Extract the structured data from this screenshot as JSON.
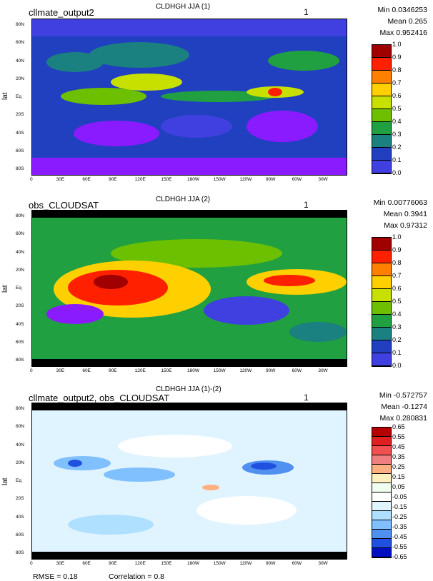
{
  "panels": [
    {
      "title_left": "cllmate_output2",
      "title_center": "CLDHGH JJA (1)",
      "title_right": "1",
      "stats": {
        "min": "Min 0.0346253",
        "mean": "Mean 0.265",
        "max": "Max 0.952416"
      },
      "ylabel": "lat",
      "colorbar": {
        "labels": [
          "1.0",
          "0.9",
          "0.8",
          "0.7",
          "0.6",
          "0.5",
          "0.4",
          "0.3",
          "0.2",
          "0.1",
          "0.0"
        ],
        "colors": [
          "#a00000",
          "#ff2000",
          "#ff8000",
          "#ffd000",
          "#c8e000",
          "#6cc000",
          "#20a040",
          "#1a8080",
          "#2040c0",
          "#4040e0",
          "#8a1aff"
        ]
      }
    },
    {
      "title_left": "obs_CLOUDSAT",
      "title_center": "CLDHGH JJA (2)",
      "title_right": "1",
      "stats": {
        "min": "Min 0.00776063",
        "mean": "Mean 0.3941",
        "max": "Max 0.97312"
      },
      "ylabel": "lat",
      "colorbar": {
        "labels": [
          "1.0",
          "0.9",
          "0.8",
          "0.7",
          "0.6",
          "0.5",
          "0.4",
          "0.3",
          "0.2",
          "0.1",
          "0.0"
        ],
        "colors": [
          "#a00000",
          "#ff2000",
          "#ff8000",
          "#ffd000",
          "#c8e000",
          "#6cc000",
          "#20a040",
          "#1a8080",
          "#2040c0",
          "#4040e0",
          "#8a1aff"
        ]
      }
    },
    {
      "title_left": "cllmate_output2, obs_CLOUDSAT",
      "title_center": "CLDHGH JJA (1)-(2)",
      "title_right": "1",
      "stats": {
        "min": "Min -0.572757",
        "mean": "Mean -0.1274",
        "max": "Max 0.280831"
      },
      "ylabel": "lat",
      "colorbar": {
        "labels": [
          "0.65",
          "0.55",
          "0.45",
          "0.35",
          "0.25",
          "0.15",
          "0.05",
          "-0.05",
          "-0.15",
          "-0.25",
          "-0.35",
          "-0.45",
          "-0.55",
          "-0.65"
        ],
        "colors": [
          "#b40000",
          "#e02020",
          "#f05050",
          "#f08080",
          "#ffb080",
          "#fff0c0",
          "#f0fff0",
          "#ffffff",
          "#e0f4ff",
          "#b0e0ff",
          "#80c0ff",
          "#5090f0",
          "#2050e0",
          "#0010c0"
        ]
      }
    }
  ],
  "lat_ticks": [
    "80N",
    "60N",
    "40N",
    "20N",
    "Eq",
    "20S",
    "40S",
    "60S",
    "80S"
  ],
  "lon_ticks": [
    "0",
    "30E",
    "60E",
    "90E",
    "120E",
    "150E",
    "180W",
    "150W",
    "120W",
    "90W",
    "60W",
    "30W"
  ],
  "footer": {
    "rmse": "RMSE = 0.18",
    "correlation": "Correlation = 0.8"
  },
  "chart_data": [
    {
      "type": "heatmap",
      "title": "CLDHGH JJA (1)",
      "ylabel": "lat",
      "min": 0.0346253,
      "mean": 0.265,
      "max": 0.952416,
      "scale": [
        0.0,
        1.0
      ]
    },
    {
      "type": "heatmap",
      "title": "CLDHGH JJA (2)",
      "ylabel": "lat",
      "min": 0.00776063,
      "mean": 0.3941,
      "max": 0.97312,
      "scale": [
        0.0,
        1.0
      ]
    },
    {
      "type": "heatmap",
      "title": "CLDHGH JJA (1)-(2)",
      "ylabel": "lat",
      "min": -0.572757,
      "mean": -0.1274,
      "max": 0.280831,
      "scale": [
        -0.65,
        0.65
      ],
      "rmse": 0.18,
      "correlation": 0.8
    }
  ]
}
